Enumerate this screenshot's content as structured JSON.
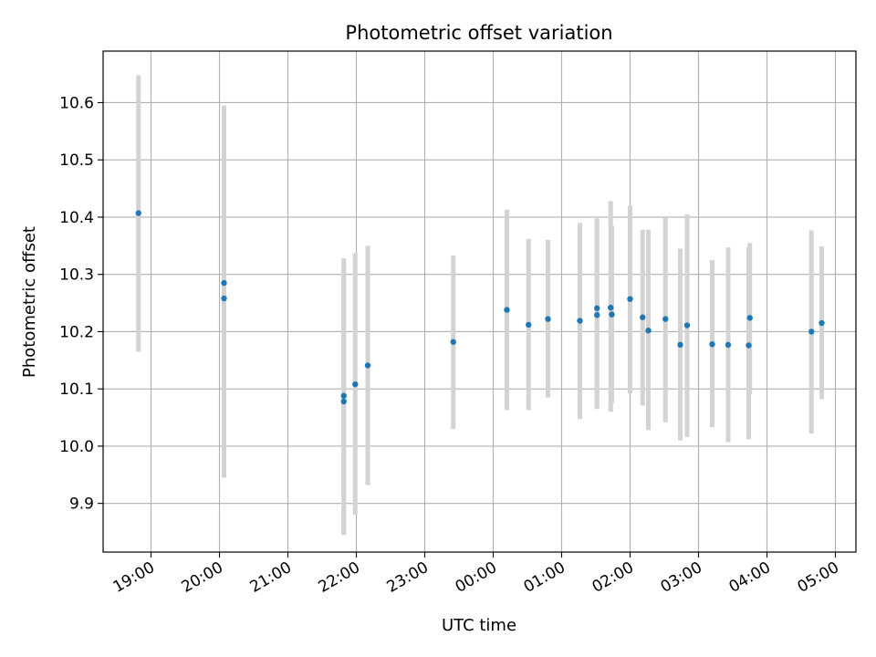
{
  "chart_data": {
    "type": "scatter",
    "title": "Photometric offset variation",
    "xlabel": "UTC time",
    "ylabel": "Photometric offset",
    "x_ticks": [
      "19:00",
      "20:00",
      "21:00",
      "22:00",
      "23:00",
      "00:00",
      "01:00",
      "02:00",
      "03:00",
      "04:00",
      "05:00"
    ],
    "y_ticks": [
      "9.9",
      "10.0",
      "10.1",
      "10.2",
      "10.3",
      "10.4",
      "10.5",
      "10.6"
    ],
    "xlim": [
      "18:18",
      "05:18"
    ],
    "ylim": [
      9.815,
      10.69
    ],
    "grid": true,
    "marker_color": "#1f77b4",
    "errorbar_color": "#d3d3d3",
    "points": [
      {
        "x": "18:49",
        "y": 10.407,
        "ylow": 10.165,
        "yhigh": 10.648
      },
      {
        "x": "20:04",
        "y": 10.285,
        "ylow": 9.945,
        "yhigh": 10.595
      },
      {
        "x": "20:04",
        "y": 10.258,
        "ylow": 9.945,
        "yhigh": 10.59
      },
      {
        "x": "21:49",
        "y": 10.088,
        "ylow": 9.845,
        "yhigh": 10.328
      },
      {
        "x": "21:49",
        "y": 10.078,
        "ylow": 9.845,
        "yhigh": 10.32
      },
      {
        "x": "21:59",
        "y": 10.108,
        "ylow": 9.88,
        "yhigh": 10.337
      },
      {
        "x": "22:10",
        "y": 10.141,
        "ylow": 9.932,
        "yhigh": 10.35
      },
      {
        "x": "23:25",
        "y": 10.182,
        "ylow": 10.03,
        "yhigh": 10.333
      },
      {
        "x": "00:12",
        "y": 10.238,
        "ylow": 10.063,
        "yhigh": 10.413
      },
      {
        "x": "00:31",
        "y": 10.212,
        "ylow": 10.063,
        "yhigh": 10.362
      },
      {
        "x": "00:48",
        "y": 10.222,
        "ylow": 10.085,
        "yhigh": 10.36
      },
      {
        "x": "01:16",
        "y": 10.219,
        "ylow": 10.047,
        "yhigh": 10.39
      },
      {
        "x": "01:31",
        "y": 10.241,
        "ylow": 10.065,
        "yhigh": 10.398
      },
      {
        "x": "01:31",
        "y": 10.229,
        "ylow": 10.065,
        "yhigh": 10.395
      },
      {
        "x": "01:43",
        "y": 10.242,
        "ylow": 10.06,
        "yhigh": 10.428
      },
      {
        "x": "01:44",
        "y": 10.23,
        "ylow": 10.075,
        "yhigh": 10.385
      },
      {
        "x": "02:00",
        "y": 10.257,
        "ylow": 10.092,
        "yhigh": 10.42
      },
      {
        "x": "02:11",
        "y": 10.225,
        "ylow": 10.071,
        "yhigh": 10.378
      },
      {
        "x": "02:16",
        "y": 10.202,
        "ylow": 10.028,
        "yhigh": 10.378
      },
      {
        "x": "02:31",
        "y": 10.222,
        "ylow": 10.042,
        "yhigh": 10.4
      },
      {
        "x": "02:44",
        "y": 10.177,
        "ylow": 10.01,
        "yhigh": 10.345
      },
      {
        "x": "02:50",
        "y": 10.211,
        "ylow": 10.016,
        "yhigh": 10.405
      },
      {
        "x": "03:12",
        "y": 10.178,
        "ylow": 10.033,
        "yhigh": 10.325
      },
      {
        "x": "03:26",
        "y": 10.177,
        "ylow": 10.007,
        "yhigh": 10.347
      },
      {
        "x": "03:44",
        "y": 10.176,
        "ylow": 10.012,
        "yhigh": 10.347
      },
      {
        "x": "03:45",
        "y": 10.224,
        "ylow": 10.09,
        "yhigh": 10.355
      },
      {
        "x": "04:39",
        "y": 10.2,
        "ylow": 10.022,
        "yhigh": 10.377
      },
      {
        "x": "04:48",
        "y": 10.215,
        "ylow": 10.082,
        "yhigh": 10.349
      }
    ]
  }
}
